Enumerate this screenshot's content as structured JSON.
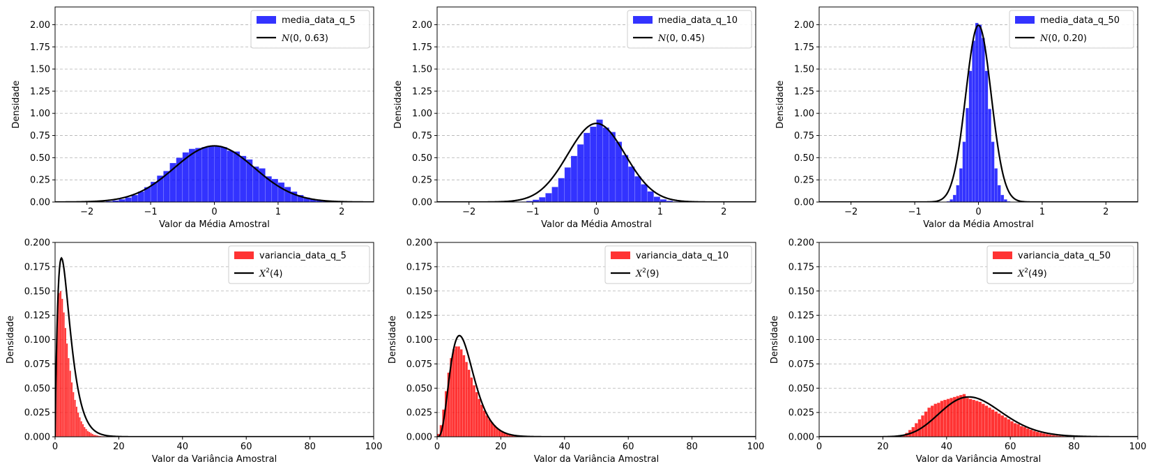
{
  "chart_data": [
    {
      "type": "bar",
      "title": "",
      "xlabel": "Valor da Média Amostral",
      "ylabel": "Densidade",
      "xlim": [
        -2.5,
        2.5
      ],
      "ylim": [
        0,
        2.2
      ],
      "xticks": [
        -2,
        -1,
        0,
        1,
        2
      ],
      "yticks": [
        0.0,
        0.25,
        0.5,
        0.75,
        1.0,
        1.25,
        1.5,
        1.75,
        2.0
      ],
      "grid": "y-dashed",
      "legend_placement": "top-right",
      "bar_color": "#0000ff",
      "curve_color": "#000000",
      "hist": {
        "name": "media_data_q_5",
        "bin_range": [
          -2.5,
          2.5
        ],
        "bins": 50,
        "values": [
          0.0,
          0.0,
          0.0,
          0.0,
          0.0,
          0.001,
          0.002,
          0.004,
          0.009,
          0.017,
          0.031,
          0.051,
          0.079,
          0.118,
          0.168,
          0.228,
          0.298,
          0.35,
          0.44,
          0.5,
          0.56,
          0.6,
          0.61,
          0.62,
          0.635,
          0.635,
          0.62,
          0.58,
          0.57,
          0.52,
          0.48,
          0.4,
          0.38,
          0.29,
          0.26,
          0.22,
          0.17,
          0.118,
          0.079,
          0.051,
          0.031,
          0.017,
          0.009,
          0.004,
          0.002,
          0.001,
          0.0,
          0.0,
          0.0,
          0.0
        ]
      },
      "curve": {
        "name": "N(0, 0.63)",
        "dist": "normal",
        "mean": 0,
        "sd": 0.63
      },
      "legend": {
        "hist_label": "media_data_q_5",
        "curve_italic": "N",
        "curve_rest": "(0, 0.63)"
      }
    },
    {
      "type": "bar",
      "title": "",
      "xlabel": "Valor da Média Amostral",
      "ylabel": "Densidade",
      "xlim": [
        -2.5,
        2.5
      ],
      "ylim": [
        0,
        2.2
      ],
      "xticks": [
        -2,
        -1,
        0,
        1,
        2
      ],
      "yticks": [
        0.0,
        0.25,
        0.5,
        0.75,
        1.0,
        1.25,
        1.5,
        1.75,
        2.0
      ],
      "grid": "y-dashed",
      "legend_placement": "top-right",
      "bar_color": "#0000ff",
      "curve_color": "#000000",
      "hist": {
        "name": "media_data_q_10",
        "bin_range": [
          -2.5,
          2.5
        ],
        "bins": 50,
        "values": [
          0.0,
          0.0,
          0.0,
          0.0,
          0.0,
          0.0,
          0.0,
          0.0,
          0.0,
          0.0,
          0.0,
          0.001,
          0.002,
          0.005,
          0.012,
          0.026,
          0.054,
          0.1,
          0.17,
          0.27,
          0.39,
          0.52,
          0.65,
          0.78,
          0.85,
          0.93,
          0.84,
          0.79,
          0.68,
          0.53,
          0.4,
          0.29,
          0.2,
          0.12,
          0.06,
          0.03,
          0.014,
          0.006,
          0.002,
          0.001,
          0.0,
          0.0,
          0.0,
          0.0,
          0.0,
          0.0,
          0.0,
          0.0,
          0.0,
          0.0
        ]
      },
      "curve": {
        "name": "N(0, 0.45)",
        "dist": "normal",
        "mean": 0,
        "sd": 0.45
      },
      "legend": {
        "hist_label": "media_data_q_10",
        "curve_italic": "N",
        "curve_rest": "(0, 0.45)"
      }
    },
    {
      "type": "bar",
      "title": "",
      "xlabel": "Valor da Média Amostral",
      "ylabel": "Densidade",
      "xlim": [
        -2.5,
        2.5
      ],
      "ylim": [
        0,
        2.2
      ],
      "xticks": [
        -2,
        -1,
        0,
        1,
        2
      ],
      "yticks": [
        0.0,
        0.25,
        0.5,
        0.75,
        1.0,
        1.25,
        1.5,
        1.75,
        2.0
      ],
      "grid": "y-dashed",
      "legend_placement": "top-right",
      "bar_color": "#0000ff",
      "curve_color": "#000000",
      "hist": {
        "name": "media_data_q_50",
        "bin_range": [
          -0.6,
          0.6
        ],
        "bins": 24,
        "values": [
          0.0,
          0.002,
          0.008,
          0.03,
          0.08,
          0.19,
          0.38,
          0.68,
          1.06,
          1.48,
          1.82,
          2.02,
          2.0,
          1.85,
          1.48,
          1.05,
          0.68,
          0.38,
          0.19,
          0.08,
          0.03,
          0.008,
          0.002,
          0.0
        ]
      },
      "curve": {
        "name": "N(0, 0.20)",
        "dist": "normal",
        "mean": 0,
        "sd": 0.2
      },
      "legend": {
        "hist_label": "media_data_q_50",
        "curve_italic": "N",
        "curve_rest": "(0, 0.20)"
      }
    },
    {
      "type": "bar",
      "title": "",
      "xlabel": "Valor da Variância Amostral",
      "ylabel": "Densidade",
      "xlim": [
        0,
        100
      ],
      "ylim": [
        0,
        0.2
      ],
      "xticks": [
        0,
        20,
        40,
        60,
        80,
        100
      ],
      "yticks": [
        0.0,
        0.025,
        0.05,
        0.075,
        0.1,
        0.125,
        0.15,
        0.175,
        0.2
      ],
      "grid": "y-dashed",
      "legend_placement": "top-right",
      "bar_color": "#ff0000",
      "curve_color": "#000000",
      "hist": {
        "name": "variancia_data_q_5",
        "bin_range": [
          0,
          24
        ],
        "bins": 48,
        "values": [
          0.06,
          0.125,
          0.148,
          0.15,
          0.142,
          0.128,
          0.112,
          0.096,
          0.081,
          0.068,
          0.056,
          0.046,
          0.038,
          0.031,
          0.025,
          0.02,
          0.016,
          0.013,
          0.01,
          0.008,
          0.006,
          0.005,
          0.004,
          0.003,
          0.002,
          0.0018,
          0.0014,
          0.001,
          0.0008,
          0.0006,
          0.0005,
          0.0004,
          0.0003,
          0.0002,
          0.0002,
          0.0001,
          0.0001,
          0.0001,
          0.0,
          0.0,
          0.0,
          0.0,
          0.0,
          0.0,
          0.0,
          0.0,
          0.0,
          0.0
        ]
      },
      "curve": {
        "name": "X²(4)",
        "dist": "chi2",
        "df": 4
      },
      "legend": {
        "hist_label": "variancia_data_q_5",
        "curve_italic": "X",
        "curve_sup": "2",
        "curve_rest": "(4)"
      }
    },
    {
      "type": "bar",
      "title": "",
      "xlabel": "Valor da Variância Amostral",
      "ylabel": "Densidade",
      "xlim": [
        0,
        100
      ],
      "ylim": [
        0,
        0.2
      ],
      "xticks": [
        0,
        20,
        40,
        60,
        80,
        100
      ],
      "yticks": [
        0.0,
        0.025,
        0.05,
        0.075,
        0.1,
        0.125,
        0.15,
        0.175,
        0.2
      ],
      "grid": "y-dashed",
      "legend_placement": "top-right",
      "bar_color": "#ff0000",
      "curve_color": "#000000",
      "hist": {
        "name": "variancia_data_q_10",
        "bin_range": [
          0,
          36
        ],
        "bins": 45,
        "values": [
          0.003,
          0.012,
          0.028,
          0.047,
          0.066,
          0.081,
          0.09,
          0.093,
          0.093,
          0.09,
          0.084,
          0.077,
          0.069,
          0.061,
          0.053,
          0.046,
          0.039,
          0.033,
          0.027,
          0.022,
          0.018,
          0.015,
          0.012,
          0.009,
          0.007,
          0.006,
          0.0045,
          0.0035,
          0.0027,
          0.002,
          0.0015,
          0.0012,
          0.0009,
          0.0007,
          0.0005,
          0.0004,
          0.0003,
          0.0002,
          0.0002,
          0.0001,
          0.0001,
          0.0,
          0.0,
          0.0,
          0.0
        ]
      },
      "curve": {
        "name": "X²(9)",
        "dist": "chi2",
        "df": 9
      },
      "legend": {
        "hist_label": "variancia_data_q_10",
        "curve_italic": "X",
        "curve_sup": "2",
        "curve_rest": "(9)"
      }
    },
    {
      "type": "bar",
      "title": "",
      "xlabel": "Valor da Variância Amostral",
      "ylabel": "Densidade",
      "xlim": [
        0,
        100
      ],
      "ylim": [
        0,
        0.2
      ],
      "xticks": [
        0,
        20,
        40,
        60,
        80,
        100
      ],
      "yticks": [
        0.0,
        0.025,
        0.05,
        0.075,
        0.1,
        0.125,
        0.15,
        0.175,
        0.2
      ],
      "grid": "y-dashed",
      "legend_placement": "top-right",
      "bar_color": "#ff0000",
      "curve_color": "#000000",
      "hist": {
        "name": "variancia_data_q_50",
        "bin_range": [
          25,
          79
        ],
        "bins": 54,
        "values": [
          0.0005,
          0.002,
          0.004,
          0.007,
          0.01,
          0.014,
          0.018,
          0.022,
          0.026,
          0.03,
          0.032,
          0.034,
          0.035,
          0.037,
          0.038,
          0.039,
          0.04,
          0.041,
          0.042,
          0.043,
          0.044,
          0.04,
          0.039,
          0.038,
          0.037,
          0.036,
          0.034,
          0.032,
          0.03,
          0.028,
          0.026,
          0.024,
          0.022,
          0.02,
          0.018,
          0.016,
          0.014,
          0.013,
          0.011,
          0.01,
          0.0085,
          0.0072,
          0.006,
          0.005,
          0.0042,
          0.0035,
          0.0028,
          0.0022,
          0.0017,
          0.0013,
          0.001,
          0.0007,
          0.0005,
          0.0003
        ]
      },
      "curve": {
        "name": "X²(49)",
        "dist": "chi2",
        "df": 49
      },
      "legend": {
        "hist_label": "variancia_data_q_50",
        "curve_italic": "X",
        "curve_sup": "2",
        "curve_rest": "(49)"
      }
    }
  ]
}
